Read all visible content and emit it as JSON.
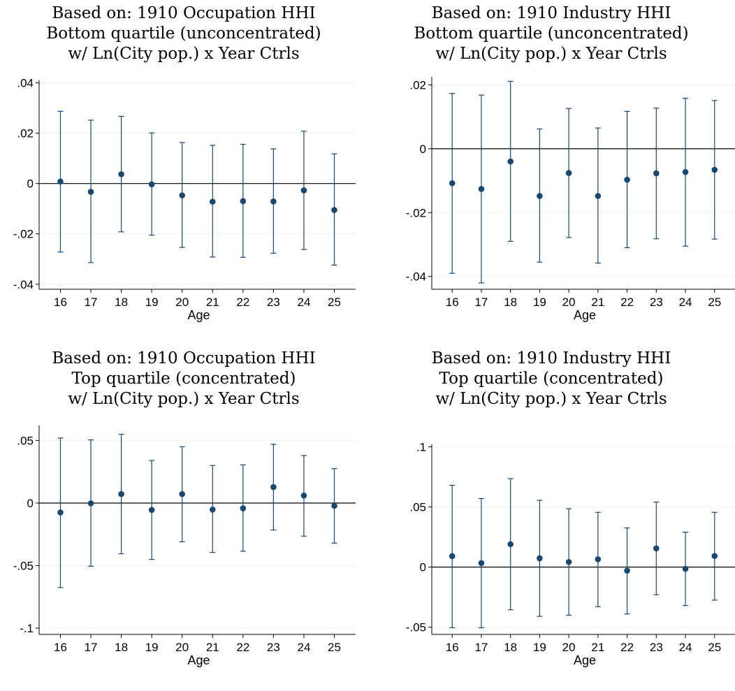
{
  "chart_data": [
    {
      "type": "scatter",
      "title_lines": [
        "Based on: 1910 Occupation HHI",
        "Bottom quartile (unconcentrated)",
        "w/ Ln(City pop.) x Year Ctrls"
      ],
      "xlabel": "Age",
      "x": [
        16,
        17,
        18,
        19,
        20,
        21,
        22,
        23,
        24,
        25
      ],
      "y": [
        0.0008,
        -0.0033,
        0.0037,
        -0.0003,
        -0.0047,
        -0.0072,
        -0.007,
        -0.0071,
        -0.0027,
        -0.0105
      ],
      "ci_low": [
        -0.0272,
        -0.0314,
        -0.0192,
        -0.0205,
        -0.0254,
        -0.0292,
        -0.0293,
        -0.0277,
        -0.0262,
        -0.0324
      ],
      "ci_high": [
        0.0287,
        0.0252,
        0.0267,
        0.0201,
        0.0163,
        0.0152,
        0.0156,
        0.0138,
        0.0208,
        0.0118
      ],
      "ylim": [
        -0.042,
        0.041
      ],
      "yticks": [
        -0.04,
        -0.02,
        0,
        0.02,
        0.04
      ],
      "ytick_labels": [
        "-.04",
        "-.02",
        "0",
        ".02",
        ".04"
      ],
      "xlim": [
        15.3,
        25.7
      ],
      "grid": true,
      "legend": "none",
      "marker_color": "#1a476f",
      "ref_line": 0
    },
    {
      "type": "scatter",
      "title_lines": [
        "Based on: 1910 Industry HHI",
        "Bottom quartile (unconcentrated)",
        "w/ Ln(City pop.) x Year Ctrls"
      ],
      "xlabel": "Age",
      "x": [
        16,
        17,
        18,
        19,
        20,
        21,
        22,
        23,
        24,
        25
      ],
      "y": [
        -0.0108,
        -0.0126,
        -0.004,
        -0.0148,
        -0.0076,
        -0.0148,
        -0.0097,
        -0.0077,
        -0.0073,
        -0.0066
      ],
      "ci_low": [
        -0.039,
        -0.042,
        -0.029,
        -0.0355,
        -0.0278,
        -0.0358,
        -0.031,
        -0.0282,
        -0.0305,
        -0.0283
      ],
      "ci_high": [
        0.0173,
        0.0168,
        0.0211,
        0.0062,
        0.0126,
        0.0065,
        0.0117,
        0.0127,
        0.0158,
        0.0151
      ],
      "ylim": [
        -0.044,
        0.0225
      ],
      "yticks": [
        -0.04,
        -0.02,
        0,
        0.02
      ],
      "ytick_labels": [
        "-.04",
        "-.02",
        "0",
        ".02"
      ],
      "xlim": [
        15.3,
        25.7
      ],
      "grid": true,
      "legend": "none",
      "marker_color": "#1a476f",
      "ref_line": 0
    },
    {
      "type": "scatter",
      "title_lines": [
        "Based on: 1910 Occupation HHI",
        "Top quartile (concentrated)",
        "w/ Ln(City pop.) x Year Ctrls"
      ],
      "xlabel": "Age",
      "x": [
        16,
        17,
        18,
        19,
        20,
        21,
        22,
        23,
        24,
        25
      ],
      "y": [
        -0.0075,
        -0.0002,
        0.0072,
        -0.0055,
        0.0072,
        -0.0052,
        -0.0042,
        0.0128,
        0.006,
        -0.0022
      ],
      "ci_low": [
        -0.0675,
        -0.0505,
        -0.0405,
        -0.045,
        -0.031,
        -0.0395,
        -0.0385,
        -0.0215,
        -0.0265,
        -0.032
      ],
      "ci_high": [
        0.052,
        0.0505,
        0.055,
        0.034,
        0.045,
        0.03,
        0.0305,
        0.047,
        0.038,
        0.0275
      ],
      "ylim": [
        -0.105,
        0.062
      ],
      "yticks": [
        -0.1,
        -0.05,
        0,
        0.05
      ],
      "ytick_labels": [
        "-.1",
        "-.05",
        "0",
        ".05"
      ],
      "xlim": [
        15.3,
        25.7
      ],
      "grid": true,
      "legend": "none",
      "marker_color": "#1a476f",
      "ref_line": 0
    },
    {
      "type": "scatter",
      "title_lines": [
        "Based on: 1910 Industry HHI",
        "Top quartile (concentrated)",
        "w/ Ln(City pop.) x Year Ctrls"
      ],
      "xlabel": "Age",
      "x": [
        16,
        17,
        18,
        19,
        20,
        21,
        22,
        23,
        24,
        25
      ],
      "y": [
        0.009,
        0.0033,
        0.019,
        0.0073,
        0.0042,
        0.0065,
        -0.003,
        0.0155,
        -0.0015,
        0.0092
      ],
      "ci_low": [
        -0.0505,
        -0.0505,
        -0.0355,
        -0.041,
        -0.04,
        -0.033,
        -0.039,
        -0.023,
        -0.032,
        -0.0275
      ],
      "ci_high": [
        0.068,
        0.057,
        0.0735,
        0.0555,
        0.0485,
        0.0455,
        0.0325,
        0.054,
        0.029,
        0.0455
      ],
      "ylim": [
        -0.056,
        0.102
      ],
      "yticks": [
        -0.05,
        0,
        0.05,
        0.1
      ],
      "ytick_labels": [
        "-.05",
        "0",
        ".05",
        ".1"
      ],
      "xlim": [
        15.3,
        25.7
      ],
      "grid": true,
      "legend": "none",
      "marker_color": "#1a476f",
      "ref_line": 0
    }
  ]
}
